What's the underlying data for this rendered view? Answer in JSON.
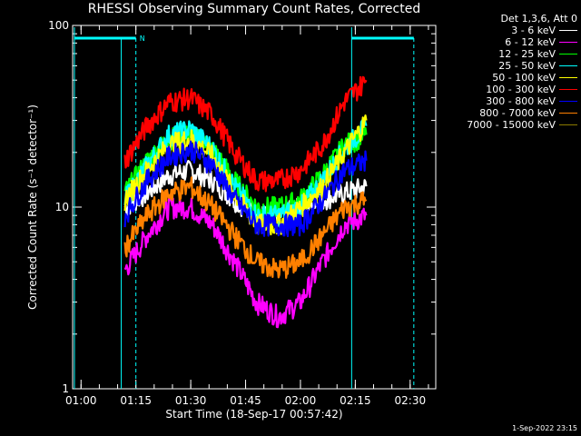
{
  "chart_data": {
    "type": "line",
    "title": "RHESSI Observing Summary Count Rates, Corrected",
    "xlabel": "Start Time (18-Sep-17 00:57:42)",
    "ylabel": "Corrected Count Rate (s⁻¹ detector⁻¹)",
    "y_scale": "log",
    "ylim": [
      1,
      100
    ],
    "xlim": [
      "00:57:42",
      "02:37:00"
    ],
    "x_ticks": [
      "01:00",
      "01:15",
      "01:30",
      "01:45",
      "02:00",
      "02:15",
      "02:30"
    ],
    "y_ticks": [
      "1",
      "10",
      "100"
    ],
    "legend_title": "Det 1,3,6, Att 0",
    "legend_position": "top-right, outside plot",
    "annotations": {
      "night_marker": "N",
      "data_gap_start": "01:11",
      "data_gap_end_dashed": "01:15",
      "second_orbit_start": "02:14",
      "second_orbit_end_dashed": "02:31"
    },
    "series": [
      {
        "name": "3 - 6 keV",
        "color": "#ffffff",
        "times": [
          "01:12",
          "01:18",
          "01:24",
          "01:30",
          "01:36",
          "01:42",
          "01:48",
          "01:54",
          "02:00",
          "02:06",
          "02:12",
          "02:18"
        ],
        "values": [
          10,
          12,
          15,
          16,
          14,
          11,
          9,
          9,
          10,
          11,
          12,
          13
        ]
      },
      {
        "name": "6 - 12 keV",
        "color": "#ff00ff",
        "times": [
          "01:12",
          "01:18",
          "01:24",
          "01:30",
          "01:36",
          "01:42",
          "01:48",
          "01:54",
          "02:00",
          "02:06",
          "02:12",
          "02:18"
        ],
        "values": [
          4.5,
          7,
          10,
          10,
          8,
          5,
          3,
          2.5,
          3,
          5,
          8,
          9
        ]
      },
      {
        "name": "12 - 25 keV",
        "color": "#00ff00",
        "times": [
          "01:12",
          "01:18",
          "01:24",
          "01:30",
          "01:36",
          "01:42",
          "01:48",
          "01:54",
          "02:00",
          "02:06",
          "02:12",
          "02:18"
        ],
        "values": [
          12,
          18,
          24,
          25,
          21,
          14,
          10,
          10,
          11,
          15,
          22,
          25
        ]
      },
      {
        "name": "25 - 50 keV",
        "color": "#00ffff",
        "times": [
          "01:12",
          "01:18",
          "01:24",
          "01:30",
          "01:36",
          "01:42",
          "01:48",
          "01:54",
          "02:00",
          "02:06",
          "02:12",
          "02:18"
        ],
        "values": [
          11,
          17,
          25,
          27,
          21,
          13,
          9,
          9,
          10,
          14,
          21,
          28
        ]
      },
      {
        "name": "50 - 100 keV",
        "color": "#ffff00",
        "times": [
          "01:12",
          "01:18",
          "01:24",
          "01:30",
          "01:36",
          "01:42",
          "01:48",
          "01:54",
          "02:00",
          "02:06",
          "02:12",
          "02:18"
        ],
        "values": [
          11,
          16,
          22,
          24,
          19,
          12,
          8,
          8,
          10,
          13,
          20,
          30
        ]
      },
      {
        "name": "100 - 300 keV",
        "color": "#ff0000",
        "times": [
          "01:12",
          "01:18",
          "01:24",
          "01:30",
          "01:36",
          "01:42",
          "01:48",
          "01:54",
          "02:00",
          "02:06",
          "02:12",
          "02:18"
        ],
        "values": [
          18,
          28,
          38,
          40,
          32,
          20,
          14,
          14,
          16,
          22,
          38,
          50
        ]
      },
      {
        "name": "300 - 800 keV",
        "color": "#0000ff",
        "times": [
          "01:12",
          "01:18",
          "01:24",
          "01:30",
          "01:36",
          "01:42",
          "01:48",
          "01:54",
          "02:00",
          "02:06",
          "02:12",
          "02:18"
        ],
        "values": [
          9,
          14,
          19,
          21,
          17,
          11,
          8,
          8,
          8,
          11,
          16,
          18
        ]
      },
      {
        "name": "800 - 7000 keV",
        "color": "#ff8000",
        "times": [
          "01:12",
          "01:18",
          "01:24",
          "01:30",
          "01:36",
          "01:42",
          "01:48",
          "01:54",
          "02:00",
          "02:06",
          "02:12",
          "02:18"
        ],
        "values": [
          6,
          9,
          12,
          13,
          10,
          7,
          5,
          4.5,
          5,
          7,
          10,
          11
        ]
      },
      {
        "name": "7000 - 15000 keV",
        "color": "#8b7a00",
        "times": [],
        "values": []
      }
    ]
  },
  "footer": {
    "date": "1-Sep-2022 23:15"
  }
}
